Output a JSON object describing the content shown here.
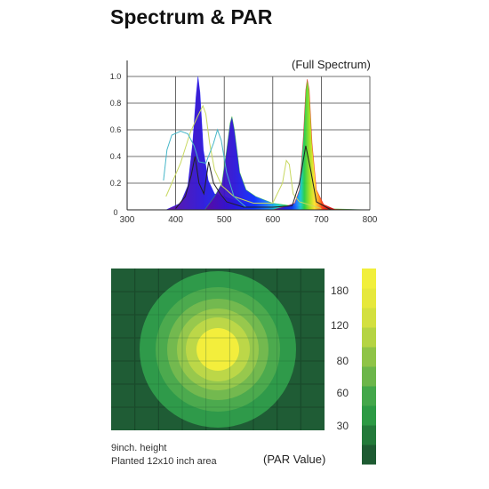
{
  "header": {
    "title": "Spectrum & PAR"
  },
  "chart_data": [
    {
      "type": "area",
      "subtitle": "(Full Spectrum)",
      "xlim": [
        300,
        800
      ],
      "ylim": [
        0,
        1.0
      ],
      "x_ticks": [
        300,
        400,
        500,
        600,
        700,
        800
      ],
      "y_ticks": [
        0,
        0.2,
        0.4,
        0.6,
        0.8,
        1.0
      ],
      "x_tick_labels": [
        "300",
        "400",
        "500",
        "600",
        "700",
        "800"
      ],
      "y_tick_labels": [
        "0",
        "0.2",
        "0.4",
        "0.6",
        "0.8",
        "1.0"
      ],
      "grid": true,
      "series": [
        {
          "color": "#1a1aff",
          "points": [
            [
              380,
              0
            ],
            [
              410,
              0.05
            ],
            [
              425,
              0.18
            ],
            [
              435,
              0.5
            ],
            [
              442,
              0.85
            ],
            [
              446,
              1.0
            ],
            [
              450,
              0.88
            ],
            [
              457,
              0.45
            ],
            [
              467,
              0.22
            ],
            [
              480,
              0.12
            ],
            [
              500,
              0.1
            ],
            [
              515,
              0.08
            ],
            [
              560,
              0.03
            ],
            [
              600,
              0.02
            ],
            [
              640,
              0.01
            ],
            [
              800,
              0
            ]
          ]
        },
        {
          "color": "#33cc33",
          "points": [
            [
              460,
              0
            ],
            [
              480,
              0.1
            ],
            [
              495,
              0.2
            ],
            [
              505,
              0.45
            ],
            [
              512,
              0.65
            ],
            [
              516,
              0.7
            ],
            [
              521,
              0.6
            ],
            [
              532,
              0.28
            ],
            [
              545,
              0.15
            ],
            [
              565,
              0.1
            ],
            [
              600,
              0.05
            ],
            [
              640,
              0.03
            ],
            [
              700,
              0.01
            ],
            [
              800,
              0
            ]
          ]
        },
        {
          "color": "#ee1111",
          "points": [
            [
              600,
              0
            ],
            [
              630,
              0.03
            ],
            [
              645,
              0.05
            ],
            [
              655,
              0.15
            ],
            [
              663,
              0.55
            ],
            [
              668,
              0.9
            ],
            [
              671,
              0.98
            ],
            [
              675,
              0.9
            ],
            [
              681,
              0.5
            ],
            [
              690,
              0.15
            ],
            [
              705,
              0.04
            ],
            [
              730,
              0
            ]
          ]
        },
        {
          "color": "#c8d860",
          "fill": false,
          "points": [
            [
              380,
              0.1
            ],
            [
              410,
              0.35
            ],
            [
              430,
              0.58
            ],
            [
              445,
              0.7
            ],
            [
              456,
              0.78
            ],
            [
              462,
              0.72
            ],
            [
              470,
              0.5
            ],
            [
              480,
              0.3
            ],
            [
              495,
              0.18
            ],
            [
              520,
              0.1
            ],
            [
              560,
              0.05
            ],
            [
              600,
              0.05
            ],
            [
              620,
              0.2
            ],
            [
              628,
              0.37
            ],
            [
              634,
              0.34
            ],
            [
              642,
              0.12
            ],
            [
              655,
              0.06
            ],
            [
              700,
              0.01
            ]
          ]
        },
        {
          "color": "#45b6c8",
          "fill": false,
          "points": [
            [
              375,
              0.22
            ],
            [
              382,
              0.45
            ],
            [
              392,
              0.56
            ],
            [
              410,
              0.59
            ],
            [
              425,
              0.57
            ],
            [
              438,
              0.48
            ],
            [
              448,
              0.36
            ],
            [
              462,
              0.35
            ],
            [
              478,
              0.5
            ],
            [
              486,
              0.6
            ],
            [
              494,
              0.52
            ],
            [
              505,
              0.28
            ],
            [
              520,
              0.1
            ],
            [
              545,
              0.02
            ]
          ]
        },
        {
          "color": "#222222",
          "fill": false,
          "points": [
            [
              400,
              0.01
            ],
            [
              420,
              0.1
            ],
            [
              432,
              0.26
            ],
            [
              440,
              0.4
            ],
            [
              448,
              0.2
            ],
            [
              458,
              0.12
            ],
            [
              468,
              0.36
            ],
            [
              478,
              0.2
            ],
            [
              492,
              0.12
            ],
            [
              505,
              0.06
            ],
            [
              540,
              0.02
            ],
            [
              600,
              0.02
            ],
            [
              640,
              0.03
            ],
            [
              655,
              0.2
            ],
            [
              668,
              0.48
            ],
            [
              678,
              0.3
            ],
            [
              690,
              0.06
            ],
            [
              720,
              0
            ]
          ]
        }
      ]
    },
    {
      "type": "heatmap",
      "ylabel": "(PAR Value)",
      "colorbar_ticks": [
        30,
        60,
        80,
        120,
        180
      ],
      "colorbar_tick_labels": [
        "30",
        "60",
        "80",
        "120",
        "180"
      ],
      "colorbar_colors": [
        "#1e5b32",
        "#237a3a",
        "#2c9a44",
        "#43a74a",
        "#6cb64a",
        "#8fc447",
        "#b5d443",
        "#d3e03f",
        "#e6e83c",
        "#f1ef3b"
      ],
      "rings_outer_to_inner": [
        "#2f9a4a",
        "#4caa4e",
        "#73b94f",
        "#97c84d",
        "#bcd748",
        "#f3ee3c"
      ],
      "background_color": "#1f5c35",
      "notes": [
        "9inch. height",
        "Planted 12x10 inch area"
      ]
    }
  ]
}
